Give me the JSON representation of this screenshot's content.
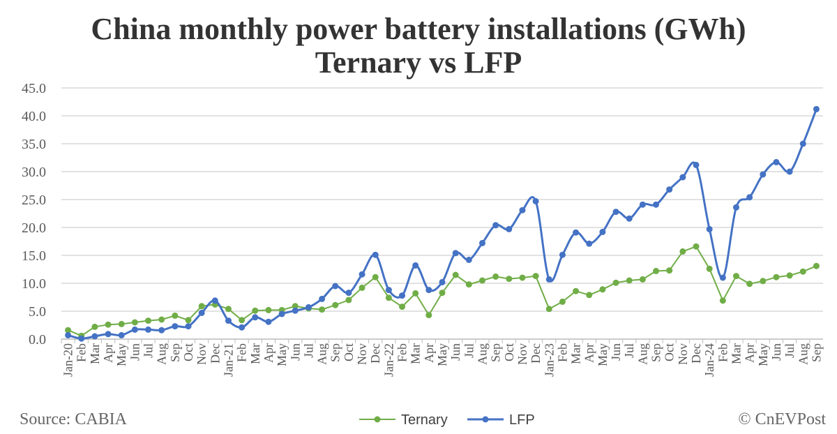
{
  "chart_data": {
    "type": "line",
    "title": [
      "China monthly power battery installations (GWh)",
      "Ternary vs LFP"
    ],
    "xlabel": "",
    "ylabel": "",
    "ylim": [
      0,
      45
    ],
    "yticks": [
      "0.0",
      "5.0",
      "10.0",
      "15.0",
      "20.0",
      "25.0",
      "30.0",
      "35.0",
      "40.0",
      "45.0"
    ],
    "grid": true,
    "legend_position": "bottom",
    "categories": [
      "Jan-20",
      "Feb",
      "Mar",
      "Apr",
      "May",
      "Jun",
      "Jul",
      "Aug",
      "Sep",
      "Oct",
      "Nov",
      "Dec",
      "Jan-21",
      "Feb",
      "Mar",
      "Apr",
      "May",
      "Jun",
      "Jul",
      "Aug",
      "Sep",
      "Oct",
      "Nov",
      "Dec",
      "Jan-22",
      "Feb",
      "Mar",
      "Apr",
      "May",
      "Jun",
      "Jul",
      "Aug",
      "Sep",
      "Oct",
      "Nov",
      "Dec",
      "Jan-23",
      "Feb",
      "Mar",
      "Apr",
      "May",
      "Jun",
      "Jul",
      "Aug",
      "Sep",
      "Oct",
      "Nov",
      "Dec",
      "Jan-24",
      "Feb",
      "Mar",
      "Apr",
      "May",
      "Jun",
      "Jul",
      "Aug",
      "Sep"
    ],
    "series": [
      {
        "name": "Ternary",
        "color": "#70AD47",
        "smooth": false,
        "values": [
          1.6,
          0.6,
          2.2,
          2.6,
          2.7,
          3.0,
          3.3,
          3.5,
          4.2,
          3.4,
          5.9,
          6.2,
          5.4,
          3.4,
          5.1,
          5.2,
          5.2,
          5.9,
          5.5,
          5.3,
          6.1,
          7.0,
          9.2,
          11.1,
          7.4,
          5.8,
          8.2,
          4.3,
          8.3,
          11.5,
          9.8,
          10.5,
          11.2,
          10.8,
          11.0,
          11.3,
          5.4,
          6.7,
          8.6,
          7.9,
          8.9,
          10.1,
          10.5,
          10.7,
          12.2,
          12.3,
          15.7,
          16.6,
          12.6,
          6.9,
          11.3,
          9.9,
          10.4,
          11.1,
          11.4,
          12.1,
          13.1
        ]
      },
      {
        "name": "LFP",
        "color": "#4472C4",
        "smooth": true,
        "values": [
          0.7,
          0.1,
          0.5,
          0.9,
          0.7,
          1.7,
          1.7,
          1.6,
          2.3,
          2.3,
          4.7,
          6.9,
          3.3,
          2.1,
          3.9,
          3.1,
          4.5,
          5.1,
          5.7,
          7.2,
          9.5,
          8.3,
          11.6,
          15.1,
          8.8,
          7.8,
          13.2,
          8.8,
          10.2,
          15.4,
          14.2,
          17.2,
          20.4,
          19.7,
          23.1,
          24.7,
          10.7,
          15.1,
          19.1,
          17.1,
          19.2,
          22.8,
          21.6,
          24.1,
          24.1,
          26.8,
          29.0,
          31.2,
          19.7,
          11.0,
          23.6,
          25.4,
          29.5,
          31.7,
          30.0,
          35.0,
          41.2
        ]
      }
    ]
  },
  "footer": {
    "source": "Source: CABIA",
    "credit": "© CnEVPost"
  }
}
